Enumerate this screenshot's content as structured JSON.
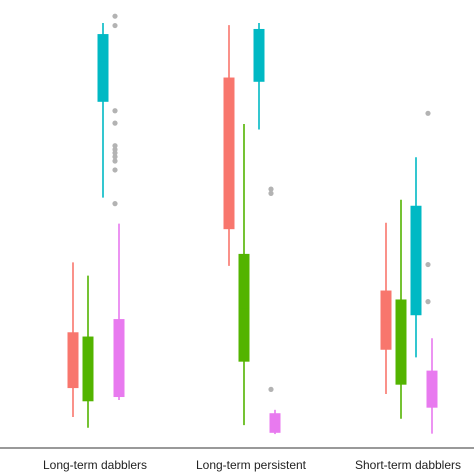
{
  "chart_data": {
    "type": "box",
    "title": "",
    "xlabel": "",
    "ylabel": "",
    "categories": [
      "Long-term dabblers",
      "Long-term persistent",
      "Short-term dabblers"
    ],
    "ylim": [
      0,
      100
    ],
    "grid": false,
    "legend": "none",
    "series": [
      {
        "color": "#f8766d",
        "boxes": [
          {
            "category": "Long-term dabblers",
            "whisker_low": 7.5,
            "q1": 14.3,
            "median": 20.5,
            "q3": 27.4,
            "whisker_high": 43.8,
            "outliers": []
          },
          {
            "category": "Long-term persistent",
            "whisker_low": 43.0,
            "q1": 51.6,
            "median": 70.0,
            "q3": 87.2,
            "whisker_high": 99.5,
            "outliers": []
          },
          {
            "category": "Short-term dabblers",
            "whisker_low": 12.9,
            "q1": 23.3,
            "median": 29.8,
            "q3": 37.2,
            "whisker_high": 53.1,
            "outliers": []
          }
        ]
      },
      {
        "color": "#53b400",
        "boxes": [
          {
            "category": "Long-term dabblers",
            "whisker_low": 5.0,
            "q1": 11.2,
            "median": 19.0,
            "q3": 26.4,
            "whisker_high": 40.7,
            "outliers": []
          },
          {
            "category": "Long-term persistent",
            "whisker_low": 5.6,
            "q1": 20.5,
            "median": 33.0,
            "q3": 45.8,
            "whisker_high": 76.3,
            "outliers": []
          },
          {
            "category": "Short-term dabblers",
            "whisker_low": 7.1,
            "q1": 15.1,
            "median": 26.0,
            "q3": 35.1,
            "whisker_high": 58.5,
            "outliers": []
          }
        ]
      },
      {
        "color": "#00b9c4",
        "boxes": [
          {
            "category": "Long-term dabblers",
            "whisker_low": 59.0,
            "q1": 81.5,
            "median": 91.0,
            "q3": 97.4,
            "whisker_high": 100.0,
            "outliers": []
          },
          {
            "category": "Long-term persistent",
            "whisker_low": 75.0,
            "q1": 86.2,
            "median": 92.0,
            "q3": 98.6,
            "whisker_high": 100.0,
            "outliers": []
          },
          {
            "category": "Short-term dabblers",
            "whisker_low": 21.5,
            "q1": 31.4,
            "median": 43.0,
            "q3": 57.1,
            "whisker_high": 68.5,
            "outliers": []
          }
        ]
      },
      {
        "color": "#e87aef",
        "boxes": [
          {
            "category": "Long-term dabblers",
            "whisker_low": 11.5,
            "q1": 12.2,
            "median": 20.0,
            "q3": 30.5,
            "whisker_high": 52.9,
            "outliers": [
              57.6,
              65.5,
              67.6,
              68.6,
              69.5,
              70.3,
              71.2,
              76.5,
              79.4,
              99.4,
              101.6
            ]
          },
          {
            "category": "Long-term persistent",
            "whisker_low": 3.5,
            "q1": 3.8,
            "median": 4.5,
            "q3": 8.4,
            "whisker_high": 9.2,
            "outliers": [
              14.0,
              60.0,
              61.0
            ]
          },
          {
            "category": "Short-term dabblers",
            "whisker_low": 3.6,
            "q1": 9.7,
            "median": 14.0,
            "q3": 18.4,
            "whisker_high": 26.0,
            "outliers": [
              34.6,
              43.3,
              78.8
            ]
          }
        ]
      }
    ]
  }
}
